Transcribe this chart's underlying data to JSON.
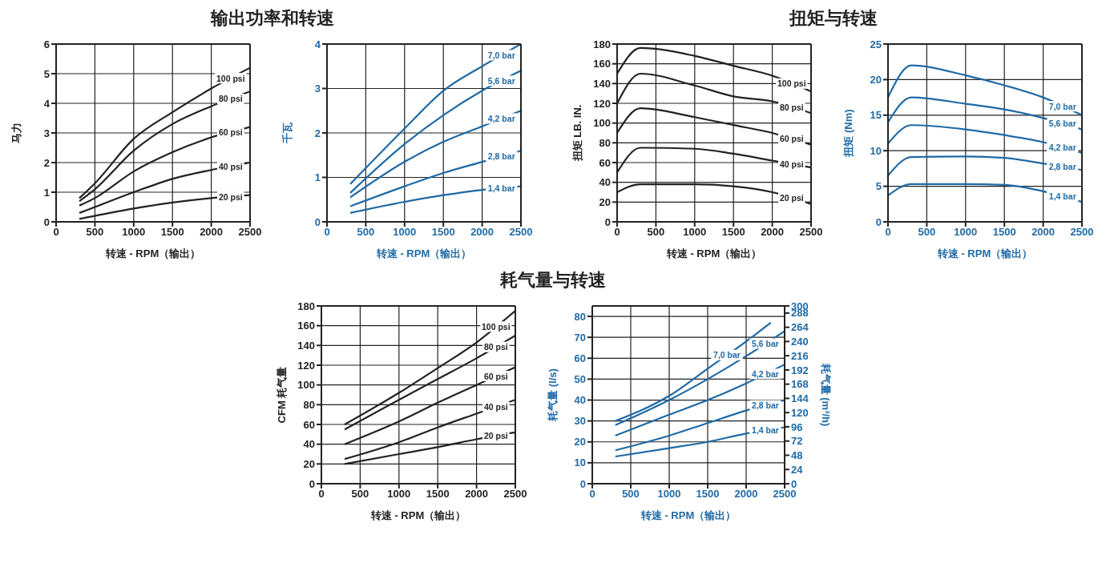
{
  "chart_data": [
    {
      "type": "line",
      "title": "输出功率和转速",
      "xlabel": "转速 - RPM（输出）",
      "ylabel": "马力",
      "xlim": [
        0,
        2500
      ],
      "xticks": [
        0,
        500,
        1000,
        1500,
        2000,
        2500
      ],
      "ylim": [
        0,
        6
      ],
      "yticks": [
        0,
        1,
        2,
        3,
        4,
        5,
        6
      ],
      "grid": true,
      "legend": false,
      "marker": "none",
      "series": [
        {
          "name": "100 psi",
          "color": "#222222",
          "x": [
            300,
            500,
            1000,
            1500,
            2000,
            2500
          ],
          "values": [
            0.8,
            1.3,
            2.8,
            3.7,
            4.5,
            5.2
          ]
        },
        {
          "name": "80 psi",
          "color": "#222222",
          "x": [
            300,
            500,
            1000,
            1500,
            2000,
            2500
          ],
          "values": [
            0.7,
            1.1,
            2.4,
            3.3,
            3.9,
            4.4
          ]
        },
        {
          "name": "60 psi",
          "color": "#222222",
          "x": [
            300,
            500,
            1000,
            1500,
            2000,
            2500
          ],
          "values": [
            0.55,
            0.8,
            1.7,
            2.35,
            2.85,
            3.2
          ]
        },
        {
          "name": "40 psi",
          "color": "#222222",
          "x": [
            300,
            500,
            1000,
            1500,
            2000,
            2500
          ],
          "values": [
            0.3,
            0.5,
            1.0,
            1.45,
            1.75,
            2.0
          ]
        },
        {
          "name": "20 psi",
          "color": "#222222",
          "x": [
            300,
            500,
            1000,
            1500,
            2000,
            2500
          ],
          "values": [
            0.1,
            0.2,
            0.45,
            0.65,
            0.8,
            0.9
          ]
        }
      ]
    },
    {
      "type": "line",
      "xlabel": "转速 - RPM（输出）",
      "ylabel": "千瓦",
      "xlim": [
        0,
        2500
      ],
      "xticks": [
        0,
        500,
        1000,
        1500,
        2000,
        2500
      ],
      "ylim": [
        0,
        4
      ],
      "yticks": [
        0,
        1,
        2,
        3,
        4
      ],
      "grid": true,
      "legend": false,
      "marker": "none",
      "series": [
        {
          "name": "7,0 bar",
          "color": "#1f6aa5",
          "x": [
            300,
            1000,
            1500,
            2000,
            2500
          ],
          "values": [
            0.85,
            2.1,
            2.95,
            3.5,
            4.0
          ]
        },
        {
          "name": "5,6 bar",
          "color": "#1f6aa5",
          "x": [
            300,
            1000,
            1500,
            2000,
            2500
          ],
          "values": [
            0.65,
            1.75,
            2.4,
            2.95,
            3.4
          ]
        },
        {
          "name": "4,2 bar",
          "color": "#1f6aa5",
          "x": [
            300,
            1000,
            1500,
            2000,
            2500
          ],
          "values": [
            0.55,
            1.35,
            1.8,
            2.15,
            2.5
          ]
        },
        {
          "name": "2,8 bar",
          "color": "#1f6aa5",
          "x": [
            300,
            1000,
            1500,
            2000,
            2500
          ],
          "values": [
            0.35,
            0.8,
            1.1,
            1.35,
            1.6
          ]
        },
        {
          "name": "1,4 bar",
          "color": "#1f6aa5",
          "x": [
            300,
            1000,
            1500,
            2000,
            2500
          ],
          "values": [
            0.2,
            0.45,
            0.6,
            0.72,
            0.8
          ]
        }
      ]
    },
    {
      "type": "line",
      "title": "扭矩与转速",
      "xlabel": "转速 - RPM（输出）",
      "ylabel": "扭矩 LB. IN.",
      "xlim": [
        0,
        2500
      ],
      "xticks": [
        0,
        500,
        1000,
        1500,
        2000,
        2500
      ],
      "ylim": [
        0,
        180
      ],
      "yticks": [
        0,
        20,
        40,
        60,
        80,
        100,
        120,
        140,
        160,
        180
      ],
      "grid": true,
      "legend": false,
      "marker": "none",
      "series": [
        {
          "name": "100 psi",
          "color": "#222222",
          "x": [
            0,
            300,
            1000,
            1500,
            2000,
            2500
          ],
          "values": [
            150,
            176,
            168,
            158,
            148,
            132
          ]
        },
        {
          "name": "80 psi",
          "color": "#222222",
          "x": [
            0,
            300,
            1000,
            1500,
            2000,
            2500
          ],
          "values": [
            120,
            150,
            138,
            127,
            122,
            110
          ]
        },
        {
          "name": "60 psi",
          "color": "#222222",
          "x": [
            0,
            300,
            1000,
            1500,
            2000,
            2500
          ],
          "values": [
            90,
            115,
            106,
            98,
            90,
            78
          ]
        },
        {
          "name": "40 psi",
          "color": "#222222",
          "x": [
            0,
            300,
            1000,
            1500,
            2000,
            2500
          ],
          "values": [
            50,
            75,
            74,
            69,
            62,
            55
          ]
        },
        {
          "name": "20 psi",
          "color": "#222222",
          "x": [
            0,
            300,
            1000,
            1500,
            2000,
            2500
          ],
          "values": [
            30,
            38,
            38,
            36,
            30,
            18
          ]
        }
      ]
    },
    {
      "type": "line",
      "xlabel": "转速 - RPM（输出）",
      "ylabel": "扭矩 (Nm)",
      "xlim": [
        0,
        2500
      ],
      "xticks": [
        0,
        500,
        1000,
        1500,
        2000,
        2500
      ],
      "ylim": [
        0,
        25
      ],
      "yticks": [
        0,
        5,
        10,
        15,
        20,
        25
      ],
      "grid": true,
      "legend": false,
      "marker": "none",
      "series": [
        {
          "name": "7,0 bar",
          "color": "#1f6aa5",
          "x": [
            0,
            300,
            1000,
            1500,
            2000,
            2500
          ],
          "values": [
            17.5,
            22,
            20.6,
            19.2,
            17.5,
            15
          ]
        },
        {
          "name": "5,6 bar",
          "color": "#1f6aa5",
          "x": [
            0,
            300,
            1000,
            1500,
            2000,
            2500
          ],
          "values": [
            14,
            17.5,
            16.6,
            15.8,
            14.6,
            13
          ]
        },
        {
          "name": "4,2 bar",
          "color": "#1f6aa5",
          "x": [
            0,
            300,
            1000,
            1500,
            2000,
            2500
          ],
          "values": [
            11,
            13.6,
            13,
            12.2,
            11.2,
            9.7
          ]
        },
        {
          "name": "2,8 bar",
          "color": "#1f6aa5",
          "x": [
            0,
            300,
            1000,
            1500,
            2000,
            2500
          ],
          "values": [
            6.5,
            9.1,
            9.2,
            9.0,
            8.2,
            7.3
          ]
        },
        {
          "name": "1,4 bar",
          "color": "#1f6aa5",
          "x": [
            0,
            300,
            1000,
            1500,
            2000,
            2500
          ],
          "values": [
            3.7,
            5.3,
            5.3,
            5.2,
            4.3,
            2.8
          ]
        }
      ]
    },
    {
      "type": "line",
      "title": "耗气量与转速",
      "xlabel": "转速 - RPM（输出）",
      "ylabel": "CFM 耗气量",
      "xlim": [
        0,
        2500
      ],
      "xticks": [
        0,
        500,
        1000,
        1500,
        2000,
        2500
      ],
      "ylim": [
        0,
        180
      ],
      "yticks": [
        0,
        20,
        40,
        60,
        80,
        100,
        120,
        140,
        160,
        180
      ],
      "grid": true,
      "legend": false,
      "marker": "none",
      "series": [
        {
          "name": "100 psi",
          "color": "#222222",
          "x": [
            300,
            1000,
            1500,
            2000,
            2500
          ],
          "values": [
            60,
            92,
            117,
            143,
            175
          ]
        },
        {
          "name": "80 psi",
          "color": "#222222",
          "x": [
            300,
            1000,
            1500,
            2000,
            2500
          ],
          "values": [
            55,
            85,
            106,
            127,
            150
          ]
        },
        {
          "name": "60 psi",
          "color": "#222222",
          "x": [
            300,
            1000,
            1500,
            2000,
            2500
          ],
          "values": [
            40,
            63,
            82,
            100,
            118
          ]
        },
        {
          "name": "40 psi",
          "color": "#222222",
          "x": [
            300,
            1000,
            1500,
            2000,
            2500
          ],
          "values": [
            25,
            42,
            57,
            71,
            85
          ]
        },
        {
          "name": "20 psi",
          "color": "#222222",
          "x": [
            300,
            1000,
            1500,
            2000,
            2500
          ],
          "values": [
            20,
            30,
            37,
            45,
            52
          ]
        }
      ]
    },
    {
      "type": "line",
      "xlabel": "转速 - RPM（输出）",
      "ylabel": "耗气量 (l/s)",
      "y2label": "耗气量 (m³/h)",
      "xlim": [
        0,
        2500
      ],
      "xticks": [
        0,
        500,
        1000,
        1500,
        2000,
        2500
      ],
      "ylim": [
        0,
        85
      ],
      "yticks": [
        0,
        10,
        20,
        30,
        40,
        50,
        60,
        70,
        80
      ],
      "y2lim": [
        0,
        300
      ],
      "y2ticks": [
        0,
        24,
        48,
        72,
        96,
        120,
        144,
        168,
        192,
        216,
        240,
        264,
        288,
        300
      ],
      "grid": true,
      "legend": false,
      "marker": "none",
      "series": [
        {
          "name": "7,0 bar",
          "color": "#1f6aa5",
          "x": [
            300,
            1000,
            1500,
            2000,
            2320
          ],
          "values": [
            30,
            42,
            55,
            68,
            77
          ]
        },
        {
          "name": "5,6 bar",
          "color": "#1f6aa5",
          "x": [
            300,
            1000,
            1500,
            2000,
            2500
          ],
          "values": [
            28,
            40,
            50,
            61,
            73
          ]
        },
        {
          "name": "4,2 bar",
          "color": "#1f6aa5",
          "x": [
            300,
            1000,
            1500,
            2000,
            2500
          ],
          "values": [
            23,
            33,
            40,
            48,
            57
          ]
        },
        {
          "name": "2,8 bar",
          "color": "#1f6aa5",
          "x": [
            300,
            1000,
            1500,
            2000,
            2500
          ],
          "values": [
            16,
            23,
            29,
            35,
            40
          ]
        },
        {
          "name": "1,4 bar",
          "color": "#1f6aa5",
          "x": [
            300,
            1000,
            1500,
            2000,
            2500
          ],
          "values": [
            13,
            17,
            20,
            24,
            27
          ]
        }
      ]
    }
  ]
}
